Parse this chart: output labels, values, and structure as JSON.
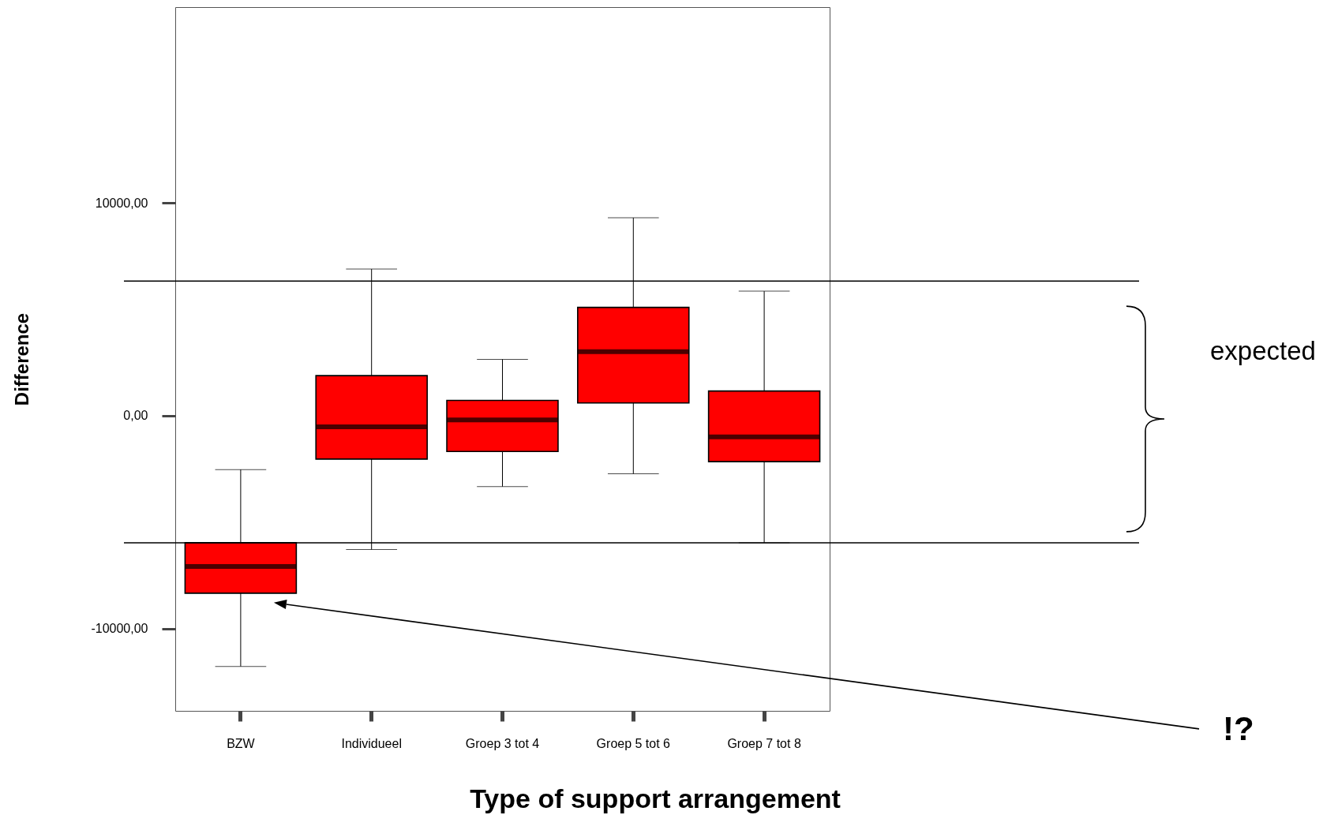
{
  "chart_data": {
    "type": "box",
    "xlabel": "Type of support arrangement",
    "ylabel": "Difference",
    "color": "#ff0000",
    "categories": [
      "BZW",
      "Individueel",
      "Groep 3 tot 4",
      "Groep 5 tot 6",
      "Groep 7 tot 8"
    ],
    "ylim": [
      -13870,
      19200
    ],
    "yticks": [
      {
        "value": -10000,
        "label": "-10000,00"
      },
      {
        "value": 0,
        "label": "0,00"
      },
      {
        "value": 10000,
        "label": "10000,00"
      }
    ],
    "boxes": [
      {
        "low": -11780,
        "q1": -8340,
        "median": -7090,
        "q3": -5970,
        "high": -2530
      },
      {
        "low": -6290,
        "q1": -2040,
        "median": -520,
        "q3": 1880,
        "high": 6890
      },
      {
        "low": -3330,
        "q1": -1680,
        "median": -200,
        "q3": 720,
        "high": 2650
      },
      {
        "low": -2730,
        "q1": 600,
        "median": 3010,
        "q3": 5090,
        "high": 9300
      },
      {
        "low": -5970,
        "q1": -2160,
        "median": -1000,
        "q3": 1160,
        "high": 5850
      }
    ],
    "ref_lines": [
      {
        "axis": "y",
        "value": 6330
      },
      {
        "axis": "y",
        "value": -5970
      }
    ],
    "annotations": [
      "expected",
      "!?"
    ]
  }
}
